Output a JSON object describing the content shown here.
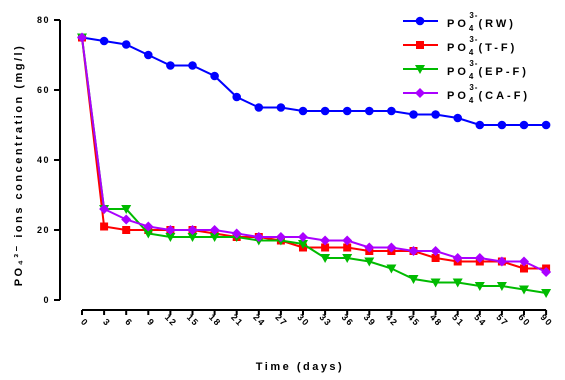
{
  "chart_data": {
    "type": "line",
    "xlabel": "Time (days)",
    "ylabel": "PO₄³⁻ ions concentration (mg/l)",
    "ylim": [
      0,
      80
    ],
    "yticks": [
      0,
      20,
      40,
      60,
      80
    ],
    "x": [
      0,
      3,
      6,
      9,
      12,
      15,
      18,
      21,
      24,
      27,
      30,
      33,
      36,
      39,
      42,
      45,
      48,
      51,
      54,
      57,
      60,
      90
    ],
    "legend_position": "top-right",
    "grid": false,
    "series": [
      {
        "name": "PO43-(RW)",
        "name_parts": {
          "base": "PO",
          "sub": "4",
          "sup": "3-",
          "tail": "(RW)"
        },
        "color": "#0000ff",
        "marker": "circle",
        "values": [
          75,
          74,
          73,
          70,
          67,
          67,
          64,
          58,
          55,
          55,
          54,
          54,
          54,
          54,
          54,
          53,
          53,
          52,
          50,
          50,
          50,
          50
        ]
      },
      {
        "name": "PO43-(T-F)",
        "name_parts": {
          "base": "PO",
          "sub": "4",
          "sup": "3-",
          "tail": "(T-F)"
        },
        "color": "#ff0000",
        "marker": "square",
        "values": [
          75,
          21,
          20,
          20,
          20,
          20,
          19,
          18,
          18,
          17,
          15,
          15,
          15,
          14,
          14,
          14,
          12,
          11,
          11,
          11,
          9,
          9
        ]
      },
      {
        "name": "PO43-(EP-F)",
        "name_parts": {
          "base": "PO",
          "sub": "4",
          "sup": "3-",
          "tail": "(EP-F)"
        },
        "color": "#00bb00",
        "marker": "triangle-down",
        "values": [
          75,
          26,
          26,
          19,
          18,
          18,
          18,
          18,
          17,
          17,
          16,
          12,
          12,
          11,
          9,
          6,
          5,
          5,
          4,
          4,
          3,
          2
        ]
      },
      {
        "name": "PO43-(CA-F)",
        "name_parts": {
          "base": "PO",
          "sub": "4",
          "sup": "3-",
          "tail": "(CA-F)"
        },
        "color": "#aa00ff",
        "marker": "diamond",
        "values": [
          75,
          26,
          23,
          21,
          20,
          20,
          20,
          19,
          18,
          18,
          18,
          17,
          17,
          15,
          15,
          14,
          14,
          12,
          12,
          11,
          11,
          8
        ]
      }
    ]
  }
}
